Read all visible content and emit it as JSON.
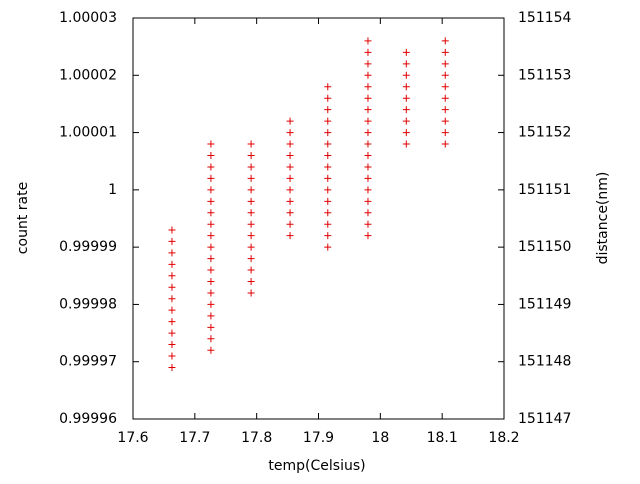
{
  "chart_data": {
    "type": "scatter",
    "x_label": "temp(Celsius)",
    "y_label": "count rate",
    "y2_label": "distance(nm)",
    "color": "#e00000",
    "x": [
      17.663,
      17.663,
      17.663,
      17.663,
      17.663,
      17.663,
      17.663,
      17.663,
      17.663,
      17.663,
      17.663,
      17.663,
      17.663,
      17.726,
      17.726,
      17.726,
      17.726,
      17.726,
      17.726,
      17.726,
      17.726,
      17.726,
      17.726,
      17.726,
      17.726,
      17.726,
      17.726,
      17.726,
      17.726,
      17.726,
      17.726,
      17.726,
      17.791,
      17.791,
      17.791,
      17.791,
      17.791,
      17.791,
      17.791,
      17.791,
      17.791,
      17.791,
      17.791,
      17.791,
      17.791,
      17.791,
      17.854,
      17.854,
      17.854,
      17.854,
      17.854,
      17.854,
      17.854,
      17.854,
      17.854,
      17.854,
      17.854,
      17.915,
      17.915,
      17.915,
      17.915,
      17.915,
      17.915,
      17.915,
      17.915,
      17.915,
      17.915,
      17.915,
      17.915,
      17.915,
      17.915,
      17.915,
      17.98,
      17.98,
      17.98,
      17.98,
      17.98,
      17.98,
      17.98,
      17.98,
      17.98,
      17.98,
      17.98,
      17.98,
      17.98,
      17.98,
      17.98,
      17.98,
      17.98,
      17.98,
      18.042,
      18.042,
      18.042,
      18.042,
      18.042,
      18.042,
      18.042,
      18.042,
      18.042,
      18.105,
      18.105,
      18.105,
      18.105,
      18.105,
      18.105,
      18.105,
      18.105,
      18.105,
      18.105
    ],
    "y": [
      0.999993,
      0.999991,
      0.999989,
      0.999987,
      0.999985,
      0.999983,
      0.999981,
      0.999979,
      0.999977,
      0.999975,
      0.999973,
      0.999971,
      0.999969,
      1.000008,
      1.000006,
      1.000004,
      1.000002,
      1,
      0.999998,
      0.999996,
      0.999994,
      0.999992,
      0.99999,
      0.999988,
      0.999986,
      0.999984,
      0.999982,
      0.99998,
      0.999978,
      0.999976,
      0.999974,
      0.999972,
      1.000008,
      1.000006,
      1.000004,
      1.000002,
      1,
      0.999998,
      0.999996,
      0.999994,
      0.999992,
      0.99999,
      0.999988,
      0.999986,
      0.999984,
      0.999982,
      1.000012,
      1.00001,
      1.000008,
      1.000006,
      1.000004,
      1.000002,
      1,
      0.999998,
      0.999996,
      0.999994,
      0.999992,
      1.000018,
      1.000016,
      1.000014,
      1.000012,
      1.00001,
      1.000008,
      1.000006,
      1.000004,
      1.000002,
      1,
      0.999998,
      0.999996,
      0.999994,
      0.999992,
      0.99999,
      1.000026,
      1.000024,
      1.000022,
      1.00002,
      1.000018,
      1.000016,
      1.000014,
      1.000012,
      1.00001,
      1.000008,
      1.000006,
      1.000004,
      1.000002,
      1,
      0.999998,
      0.999996,
      0.999994,
      0.999992,
      1.000024,
      1.000022,
      1.00002,
      1.000018,
      1.000016,
      1.000014,
      1.000012,
      1.00001,
      1.000008,
      1.000026,
      1.000024,
      1.000022,
      1.00002,
      1.000018,
      1.000016,
      1.000014,
      1.000012,
      1.00001,
      1.000008
    ],
    "xlim": [
      17.6,
      18.2
    ],
    "xticks": [
      17.6,
      17.7,
      17.8,
      17.9,
      18,
      18.1,
      18.2
    ],
    "ylim": [
      0.99996,
      1.00003
    ],
    "yticks": [
      0.99996,
      0.99997,
      0.99998,
      0.99999,
      1,
      1.00001,
      1.00002,
      1.00003
    ],
    "y2lim": [
      151147,
      151154
    ],
    "y2ticks": [
      151147,
      151148,
      151149,
      151150,
      151151,
      151152,
      151153,
      151154
    ]
  }
}
